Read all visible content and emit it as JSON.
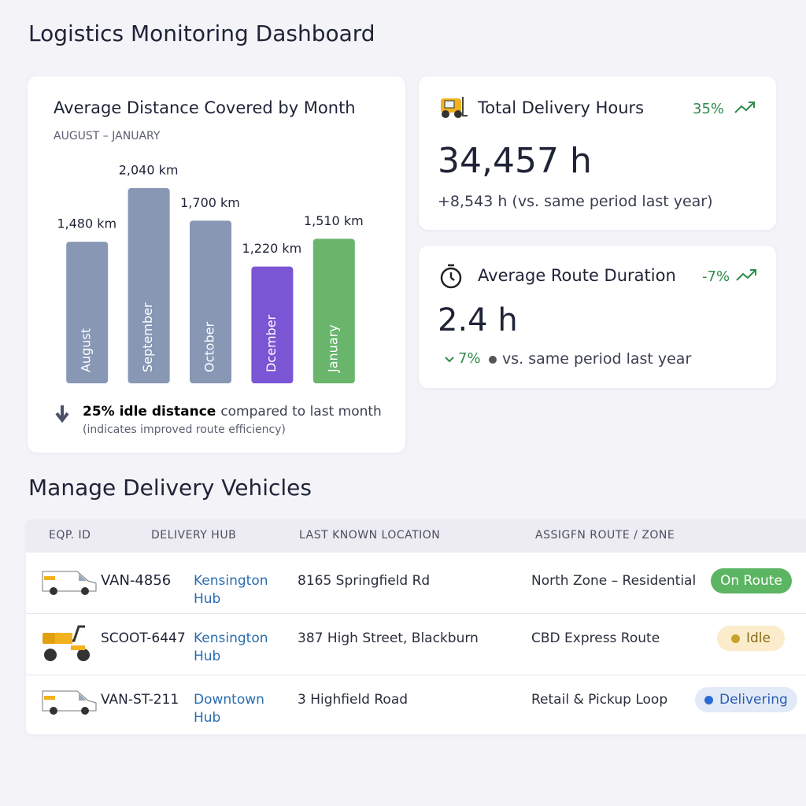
{
  "title": "Logistics Monitoring Dashboard",
  "chart_data": {
    "type": "bar",
    "title": "Average Distance Covered by Month",
    "subtitle": "AUGUST – JANUARY",
    "categories": [
      "August",
      "September",
      "October",
      "Dcember",
      "January"
    ],
    "values": [
      1480,
      2040,
      1700,
      1220,
      1510
    ],
    "value_labels": [
      "1,480 km",
      "2,040 km",
      "1,700 km",
      "1,220 km",
      "1,510 km"
    ],
    "colors": [
      "#8797b4",
      "#8797b4",
      "#8797b4",
      "#7a55d4",
      "#69b56c"
    ]
  },
  "chart_note": {
    "highlight": "25% idle distance",
    "text": "compared to last month",
    "detail": "(indicates improved route efficiency)"
  },
  "kpis": [
    {
      "title": "Total Delivery Hours",
      "change": "35%",
      "value": "34,457 h",
      "comparison": "+8,543 h (vs. same period last year)"
    },
    {
      "title": "Average Route Duration",
      "change": "-7%",
      "value": "2.4 h",
      "comparison_change": "7%",
      "comparison": "vs. same period last year"
    }
  ],
  "section_title": "Manage Delivery Vehicles",
  "table": {
    "headers": [
      "EQP. ID",
      "DELIVERY HUB",
      "LAST KNOWN LOCATION",
      "ASSIGFN ROUTE / ZONE"
    ],
    "rows": [
      [
        "VAN-4856",
        "Kensington Hub",
        "8165 Springfield Rd",
        "North Zone – Residential",
        "On Route"
      ],
      [
        "SCOOT-6447",
        "Kensington Hub",
        "387 High Street, Blackburn",
        "CBD Express Route",
        "Idle"
      ],
      [
        "VAN-ST-211",
        "Downtown Hub",
        "3 Highfield Road",
        "Retail & Pickup Loop",
        "Delivering"
      ]
    ]
  }
}
